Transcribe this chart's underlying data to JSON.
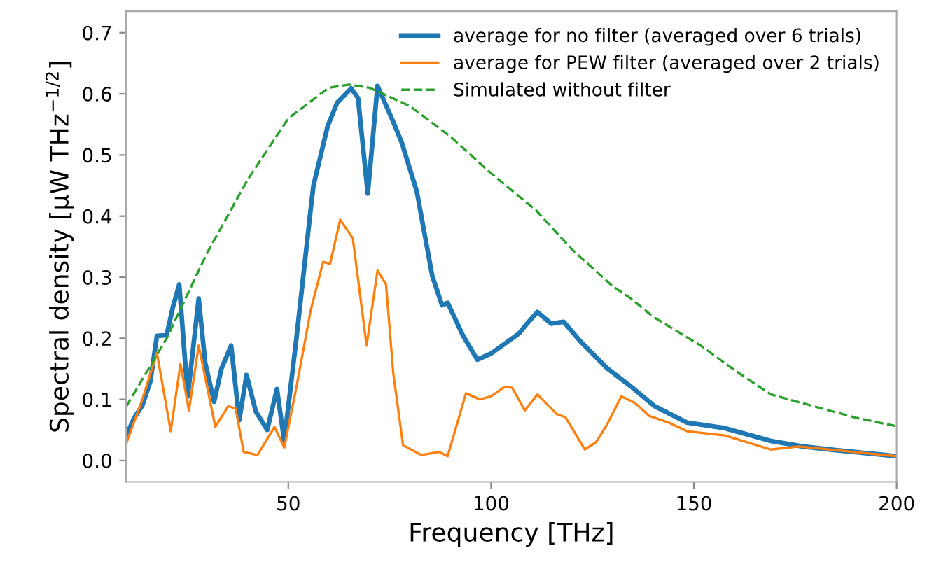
{
  "chart_data": {
    "type": "line",
    "xlabel": "Frequency [THz]",
    "ylabel": "Spectral density [μW THz$^{−1/2}$]",
    "xlim": [
      10,
      200
    ],
    "ylim": [
      -0.035,
      0.735
    ],
    "xticks": [
      50,
      100,
      150,
      200
    ],
    "yticks": [
      {
        "value": 0,
        "label": "0.0"
      },
      0.1,
      0.2,
      0.3,
      0.4,
      0.5,
      0.6,
      0.7
    ],
    "grid": false,
    "legend": "top right",
    "series": [
      {
        "name": "average for no filter (averaged over 6 trials)",
        "color": "#1f77b4",
        "line_style": "solid",
        "x": [
          10,
          12,
          14,
          16,
          17.6,
          20,
          21.5,
          23.1,
          25.2,
          27.9,
          29.5,
          31.7,
          33.5,
          35.9,
          37.9,
          39.7,
          42,
          44.8,
          47.2,
          49,
          52,
          55.5,
          56.2,
          59.7,
          62,
          65.5,
          67.2,
          69.6,
          72,
          75.9,
          78,
          81.7,
          85.5,
          87.9,
          89.3,
          93.1,
          96.6,
          100,
          106.9,
          109,
          111.4,
          114.8,
          117.9,
          122,
          128.6,
          134.5,
          140.3,
          148.3,
          157.6,
          169,
          176.9,
          185,
          200
        ],
        "values": [
          0.04,
          0.07,
          0.09,
          0.13,
          0.204,
          0.205,
          0.25,
          0.288,
          0.105,
          0.265,
          0.16,
          0.096,
          0.15,
          0.188,
          0.066,
          0.14,
          0.08,
          0.05,
          0.117,
          0.032,
          0.2,
          0.41,
          0.45,
          0.547,
          0.585,
          0.609,
          0.593,
          0.437,
          0.613,
          0.554,
          0.52,
          0.44,
          0.302,
          0.254,
          0.258,
          0.204,
          0.165,
          0.175,
          0.208,
          0.225,
          0.243,
          0.224,
          0.227,
          0.195,
          0.151,
          0.121,
          0.089,
          0.062,
          0.053,
          0.032,
          0.023,
          0.017,
          0.007
        ]
      },
      {
        "name": "average for PEW filter (averaged over 2 trials)",
        "color": "#ff7f0e",
        "line_style": "solid",
        "x": [
          10,
          14,
          17.6,
          21,
          23.4,
          25.5,
          27.9,
          32,
          35.2,
          37,
          39,
          42.4,
          46.6,
          49,
          52,
          55.5,
          58.6,
          60.3,
          62.8,
          65.9,
          69.3,
          72,
          74.1,
          75.9,
          78.3,
          82.8,
          87.2,
          89.3,
          93.8,
          97.2,
          100,
          103.4,
          105.2,
          108.3,
          111.4,
          116.2,
          118.3,
          123.1,
          125.9,
          128.6,
          132.1,
          135.5,
          139,
          143.8,
          148.3,
          157.6,
          169,
          175.9,
          185,
          200
        ],
        "values": [
          0.027,
          0.1,
          0.176,
          0.048,
          0.158,
          0.082,
          0.188,
          0.055,
          0.089,
          0.085,
          0.014,
          0.009,
          0.055,
          0.021,
          0.12,
          0.245,
          0.325,
          0.322,
          0.394,
          0.364,
          0.188,
          0.311,
          0.288,
          0.142,
          0.025,
          0.009,
          0.014,
          0.007,
          0.11,
          0.1,
          0.105,
          0.121,
          0.119,
          0.082,
          0.108,
          0.076,
          0.071,
          0.018,
          0.03,
          0.059,
          0.105,
          0.094,
          0.073,
          0.062,
          0.048,
          0.041,
          0.018,
          0.023,
          0.017,
          0.007
        ]
      },
      {
        "name": "Simulated without filter",
        "color": "#2ca02c",
        "line_style": "dashed",
        "x": [
          10,
          20,
          30,
          40,
          50,
          60,
          65,
          70,
          80,
          90,
          100,
          111,
          120,
          130,
          134.5,
          140,
          151.7,
          160,
          169,
          180,
          190,
          200
        ],
        "values": [
          0.088,
          0.2,
          0.34,
          0.46,
          0.56,
          0.61,
          0.615,
          0.61,
          0.58,
          0.53,
          0.47,
          0.41,
          0.345,
          0.285,
          0.265,
          0.235,
          0.188,
          0.148,
          0.108,
          0.088,
          0.07,
          0.056
        ]
      }
    ]
  }
}
